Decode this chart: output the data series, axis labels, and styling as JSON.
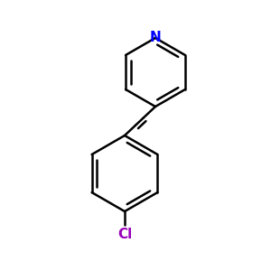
{
  "background_color": "#ffffff",
  "bond_color": "#000000",
  "N_color": "#0000ff",
  "Cl_color": "#9900bb",
  "bond_width": 1.8,
  "font_size_N": 11,
  "font_size_Cl": 11,
  "figsize": [
    3.0,
    3.0
  ],
  "dpi": 100
}
